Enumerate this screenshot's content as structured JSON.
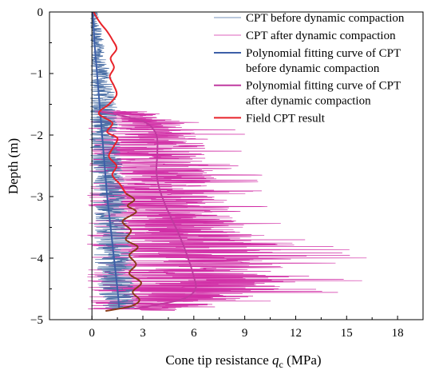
{
  "chart_data": {
    "type": "line",
    "xlabel": "Cone tip resistance",
    "xlabel_symbol": "q",
    "xlabel_subscript": "c",
    "xlabel_unit": "(MPa)",
    "ylabel": "Depth (m)",
    "xlim": [
      -2.5,
      19.5
    ],
    "ylim": [
      -5,
      0
    ],
    "x_ticks": [
      0,
      3,
      6,
      9,
      12,
      15,
      18
    ],
    "x_tick_labels": [
      "0",
      "3",
      "6",
      "9",
      "12",
      "15",
      "18"
    ],
    "y_ticks": [
      0,
      -1,
      -2,
      -3,
      -4,
      -5
    ],
    "y_tick_labels": [
      "0",
      "−1",
      "−2",
      "−3",
      "−4",
      "−5"
    ],
    "grid": false,
    "legend_position": "top-right",
    "colors": {
      "cpt_before": "#4a6fa5",
      "cpt_after": "#d12ea6",
      "fit_before": "#3d5fa8",
      "fit_after": "#c03aa0",
      "field": "#e8232a",
      "field_dark": "#8b3a1a"
    },
    "series": [
      {
        "name": "CPT before dynamic compaction",
        "key": "cpt_before",
        "style": "thin",
        "profile": [
          [
            0,
            0.1
          ],
          [
            -0.5,
            0.3
          ],
          [
            -1.0,
            0.5
          ],
          [
            -1.5,
            0.6
          ],
          [
            -2.0,
            0.7
          ],
          [
            -2.5,
            0.85
          ],
          [
            -3.0,
            1.0
          ],
          [
            -3.5,
            1.15
          ],
          [
            -4.0,
            1.3
          ],
          [
            -4.5,
            1.45
          ],
          [
            -4.8,
            1.5
          ]
        ],
        "amplitude": [
          [
            0,
            0.25
          ],
          [
            -1.0,
            0.6
          ],
          [
            -1.5,
            0.9
          ],
          [
            -3.0,
            1.0
          ],
          [
            -4.0,
            1.2
          ],
          [
            -4.8,
            1.0
          ]
        ]
      },
      {
        "name": "CPT after dynamic compaction",
        "key": "cpt_after",
        "style": "thin",
        "depth_range": [
          -1.6,
          -4.85
        ],
        "profile": [
          [
            -1.6,
            1.0
          ],
          [
            -1.75,
            3.0
          ],
          [
            -2.0,
            3.8
          ],
          [
            -2.5,
            3.8
          ],
          [
            -3.0,
            4.2
          ],
          [
            -3.5,
            5.0
          ],
          [
            -4.0,
            5.8
          ],
          [
            -4.35,
            6.2
          ],
          [
            -4.6,
            5.5
          ],
          [
            -4.8,
            3.0
          ]
        ],
        "amplitude": [
          [
            -1.6,
            2.0
          ],
          [
            -2.0,
            3.5
          ],
          [
            -3.0,
            4.5
          ],
          [
            -4.0,
            6.5
          ],
          [
            -4.5,
            7.0
          ],
          [
            -4.8,
            4.0
          ]
        ]
      },
      {
        "name": "Polynomial fitting curve of CPT before dynamic compaction",
        "key": "fit_before",
        "style": "thick",
        "points": [
          [
            0.05,
            0
          ],
          [
            0.15,
            -0.5
          ],
          [
            0.3,
            -1.0
          ],
          [
            0.45,
            -1.5
          ],
          [
            0.6,
            -2.0
          ],
          [
            0.75,
            -2.5
          ],
          [
            0.9,
            -3.0
          ],
          [
            1.1,
            -3.5
          ],
          [
            1.3,
            -4.0
          ],
          [
            1.5,
            -4.5
          ],
          [
            1.6,
            -4.8
          ]
        ]
      },
      {
        "name": "Polynomial fitting curve of CPT after dynamic compaction",
        "key": "fit_after",
        "style": "thick",
        "points": [
          [
            0.5,
            -1.62
          ],
          [
            2.0,
            -1.7
          ],
          [
            3.2,
            -1.8
          ],
          [
            3.8,
            -2.0
          ],
          [
            3.85,
            -2.3
          ],
          [
            3.8,
            -2.6
          ],
          [
            4.0,
            -2.9
          ],
          [
            4.5,
            -3.25
          ],
          [
            5.1,
            -3.6
          ],
          [
            5.6,
            -3.95
          ],
          [
            6.0,
            -4.3
          ],
          [
            6.1,
            -4.5
          ],
          [
            5.5,
            -4.65
          ],
          [
            4.0,
            -4.75
          ],
          [
            2.5,
            -4.82
          ]
        ]
      },
      {
        "name": "Field CPT result",
        "key": "field",
        "style": "thick",
        "points": [
          [
            0.1,
            0
          ],
          [
            0.3,
            -0.1
          ],
          [
            0.55,
            -0.2
          ],
          [
            0.85,
            -0.3
          ],
          [
            1.2,
            -0.45
          ],
          [
            1.45,
            -0.6
          ],
          [
            1.1,
            -0.75
          ],
          [
            1.3,
            -0.9
          ],
          [
            1.05,
            -1.05
          ],
          [
            1.3,
            -1.2
          ],
          [
            1.45,
            -1.35
          ],
          [
            1.0,
            -1.5
          ],
          [
            0.4,
            -1.65
          ],
          [
            1.2,
            -1.8
          ],
          [
            0.9,
            -1.95
          ],
          [
            1.5,
            -2.05
          ],
          [
            1.25,
            -2.2
          ],
          [
            1.0,
            -2.35
          ],
          [
            1.45,
            -2.5
          ],
          [
            1.2,
            -2.65
          ],
          [
            1.65,
            -2.8
          ],
          [
            2.0,
            -2.95
          ],
          [
            2.5,
            -3.05
          ],
          [
            2.1,
            -3.15
          ],
          [
            2.6,
            -3.25
          ],
          [
            1.8,
            -3.4
          ],
          [
            2.3,
            -3.55
          ],
          [
            2.0,
            -3.7
          ],
          [
            2.7,
            -3.82
          ],
          [
            2.2,
            -3.95
          ],
          [
            2.6,
            -4.1
          ],
          [
            2.2,
            -4.25
          ],
          [
            2.9,
            -4.4
          ],
          [
            2.4,
            -4.55
          ],
          [
            2.8,
            -4.68
          ],
          [
            2.3,
            -4.78
          ],
          [
            0.8,
            -4.86
          ]
        ]
      }
    ]
  }
}
